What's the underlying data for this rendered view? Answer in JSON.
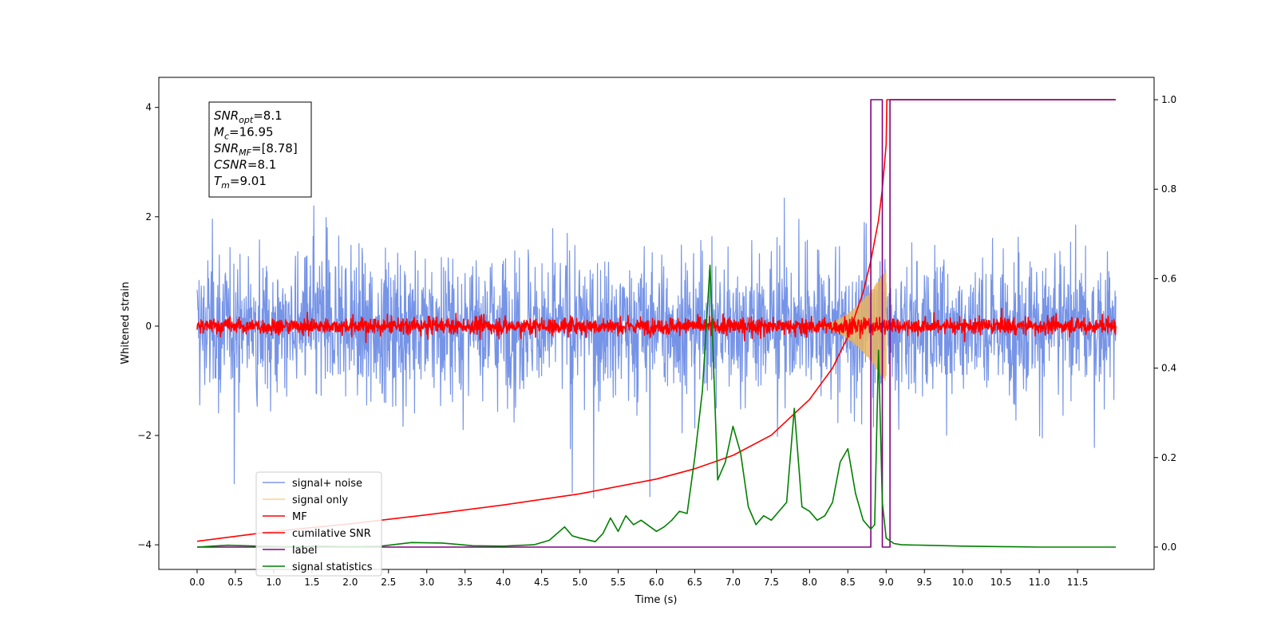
{
  "chart_data": {
    "type": "line",
    "xlabel": "Time (s)",
    "ylabel": "Whitened strain",
    "xlim": [
      -0.5,
      12.5
    ],
    "ylim": [
      -4.45,
      4.55
    ],
    "y2lim": [
      -0.05,
      1.05
    ],
    "x_ticks": [
      0.0,
      0.5,
      1.0,
      1.5,
      2.0,
      2.5,
      3.0,
      3.5,
      4.0,
      4.5,
      5.0,
      5.5,
      6.0,
      6.5,
      7.0,
      7.5,
      8.0,
      8.5,
      9.0,
      9.5,
      10.0,
      10.5,
      11.0,
      11.5
    ],
    "x_tick_labels": [
      "0.0",
      "0.5",
      "1.0",
      "1.5",
      "2.0",
      "2.5",
      "3.0",
      "3.5",
      "4.0",
      "4.5",
      "5.0",
      "5.5",
      "6.0",
      "6.5",
      "7.0",
      "7.5",
      "8.0",
      "8.5",
      "9.0",
      "9.5",
      "10.0",
      "10.5",
      "11.0",
      "11.5"
    ],
    "y_ticks": [
      -4,
      -2,
      0,
      2,
      4
    ],
    "y_tick_labels": [
      "−4",
      "−2",
      "0",
      "2",
      "4"
    ],
    "y2_ticks": [
      0.0,
      0.2,
      0.4,
      0.6,
      0.8,
      1.0
    ],
    "y2_tick_labels": [
      "0.0",
      "0.2",
      "0.4",
      "0.6",
      "0.8",
      "1.0"
    ],
    "grid": false,
    "legend_position": "lower-left",
    "series": [
      {
        "name": "signal+ noise",
        "color": "#6f8ee6",
        "axis": "left",
        "kind": "noise",
        "x_range": [
          0.0,
          12.0
        ],
        "amplitude": 1.0
      },
      {
        "name": "signal only",
        "color": "#e8b45f",
        "axis": "left",
        "kind": "chirp",
        "x_range": [
          8.0,
          9.0
        ],
        "peak_amplitude": 1.05
      },
      {
        "name": "MF",
        "color": "#ff0000",
        "axis": "left",
        "kind": "noise",
        "x_range": [
          0.0,
          12.0
        ],
        "amplitude": 0.12
      },
      {
        "name": "cumilative SNR",
        "color": "#ff0000",
        "axis": "right",
        "x": [
          0.0,
          1.0,
          2.0,
          3.0,
          4.0,
          5.0,
          6.0,
          6.5,
          7.0,
          7.5,
          8.0,
          8.3,
          8.5,
          8.7,
          8.8,
          8.9,
          8.95,
          9.0,
          9.01,
          12.0
        ],
        "y": [
          0.013,
          0.035,
          0.052,
          0.072,
          0.094,
          0.119,
          0.152,
          0.175,
          0.205,
          0.25,
          0.33,
          0.4,
          0.47,
          0.57,
          0.64,
          0.73,
          0.8,
          0.9,
          1.0,
          1.0
        ]
      },
      {
        "name": "label",
        "color": "#800080",
        "axis": "right",
        "x": [
          0.0,
          8.8,
          8.8,
          8.95,
          8.95,
          9.05,
          9.05,
          12.0
        ],
        "y": [
          0.0,
          0.0,
          1.0,
          1.0,
          0.0,
          0.0,
          1.0,
          1.0
        ]
      },
      {
        "name": "signal statistics",
        "color": "#008000",
        "axis": "right",
        "x": [
          0.0,
          0.4,
          0.8,
          1.2,
          1.6,
          2.0,
          2.4,
          2.8,
          3.2,
          3.4,
          3.6,
          4.0,
          4.4,
          4.6,
          4.8,
          4.9,
          5.0,
          5.2,
          5.3,
          5.4,
          5.5,
          5.6,
          5.7,
          5.8,
          6.0,
          6.1,
          6.2,
          6.3,
          6.4,
          6.5,
          6.6,
          6.7,
          6.8,
          6.9,
          7.0,
          7.1,
          7.2,
          7.3,
          7.4,
          7.5,
          7.6,
          7.7,
          7.8,
          7.9,
          8.0,
          8.1,
          8.2,
          8.3,
          8.4,
          8.5,
          8.6,
          8.7,
          8.8,
          8.85,
          8.9,
          8.95,
          9.0,
          9.1,
          9.2,
          9.5,
          10.0,
          10.5,
          11.0,
          11.5,
          12.0
        ],
        "y": [
          0.0,
          0.004,
          0.002,
          0.001,
          0.002,
          0.001,
          0.002,
          0.01,
          0.009,
          0.006,
          0.003,
          0.002,
          0.005,
          0.015,
          0.045,
          0.025,
          0.02,
          0.012,
          0.03,
          0.065,
          0.035,
          0.07,
          0.05,
          0.06,
          0.035,
          0.045,
          0.06,
          0.08,
          0.075,
          0.2,
          0.35,
          0.63,
          0.15,
          0.19,
          0.27,
          0.21,
          0.09,
          0.05,
          0.07,
          0.06,
          0.08,
          0.1,
          0.31,
          0.09,
          0.08,
          0.06,
          0.07,
          0.1,
          0.19,
          0.22,
          0.12,
          0.06,
          0.04,
          0.05,
          0.44,
          0.1,
          0.02,
          0.008,
          0.005,
          0.004,
          0.002,
          0.001,
          0.0,
          0.0,
          0.0
        ]
      }
    ],
    "annotation_box": {
      "lines": [
        {
          "var": "SNR",
          "sub": "opt",
          "value": "=8.1"
        },
        {
          "var": "M",
          "sub": "c",
          "value": "=16.95"
        },
        {
          "var": "SNR",
          "sub": "MF",
          "value": "=[8.78]"
        },
        {
          "var": "CSNR",
          "sub": "",
          "value": "=8.1"
        },
        {
          "var": "T",
          "sub": "m",
          "value": "=9.01"
        }
      ]
    }
  }
}
